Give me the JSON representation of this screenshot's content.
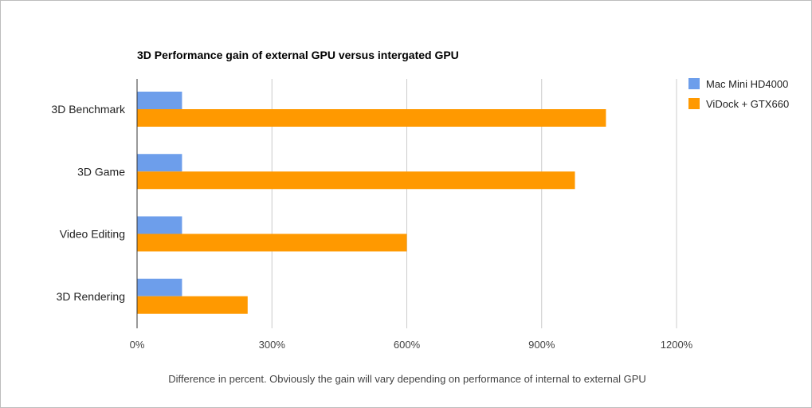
{
  "chart_data": {
    "type": "bar",
    "orientation": "horizontal",
    "title": "3D Performance gain of external GPU versus intergated GPU",
    "xlabel": "Difference in percent. Obviously the gain will vary depending on performance of internal to external GPU",
    "ylabel": "",
    "categories": [
      "3D Benchmark",
      "3D Game",
      "Video Editing",
      "3D Rendering"
    ],
    "series": [
      {
        "name": "Mac Mini HD4000",
        "color": "#6d9eeb",
        "values": [
          100,
          100,
          100,
          100
        ]
      },
      {
        "name": "ViDock + GTX660",
        "color": "#ff9900",
        "values": [
          1043,
          974,
          600,
          246
        ]
      }
    ],
    "xlim": [
      0,
      1200
    ],
    "xticks": [
      0,
      300,
      600,
      900,
      1200
    ],
    "xtick_labels": [
      "0%",
      "300%",
      "600%",
      "900%",
      "1200%"
    ],
    "grid": true,
    "legend_position": "top-right"
  }
}
